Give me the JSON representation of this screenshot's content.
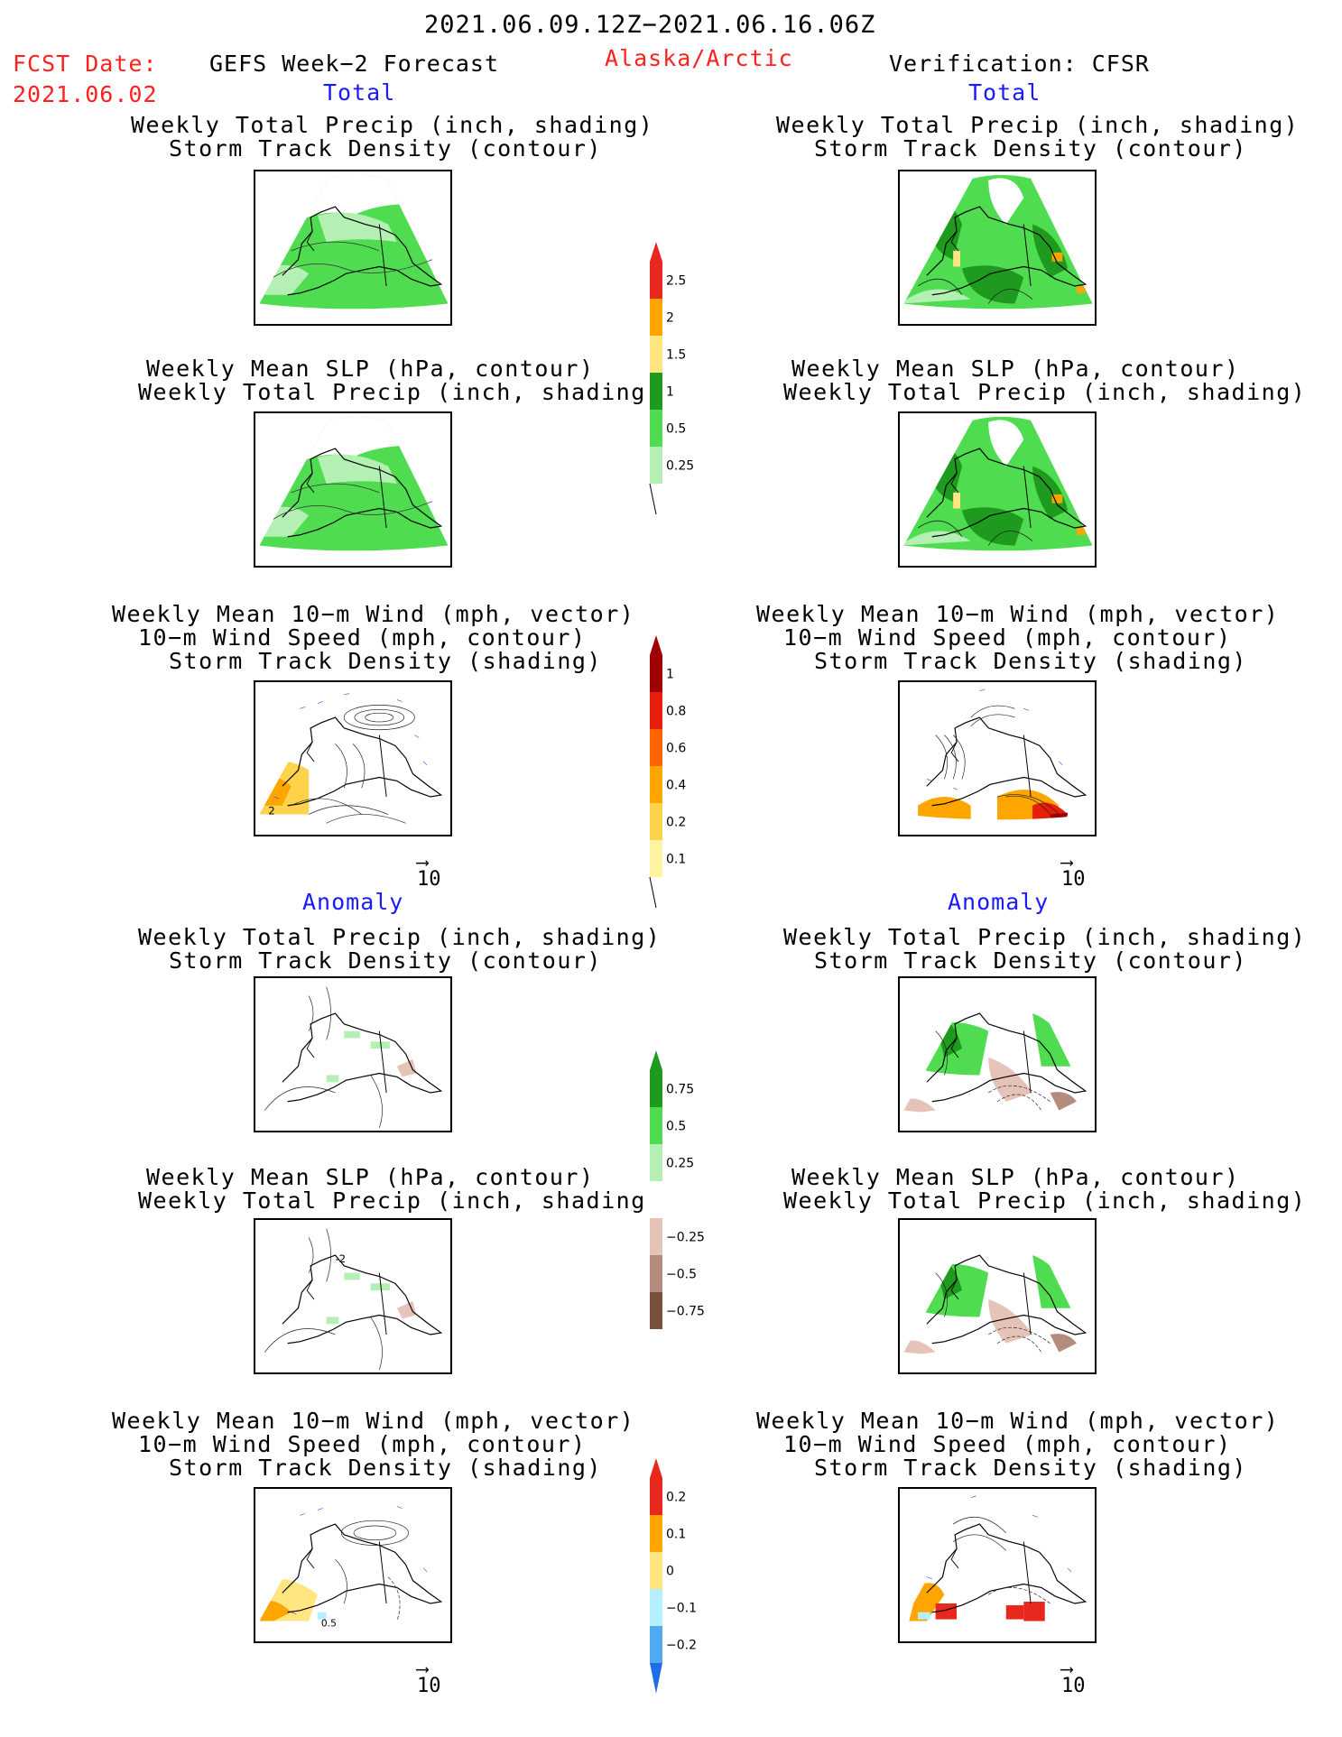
{
  "header": {
    "period": "2021.06.09.12Z−2021.06.16.06Z",
    "fcst_label": "FCST Date:",
    "fcst_date": "2021.06.02",
    "model": "GEFS Week−2 Forecast",
    "region": "Alaska/Arctic",
    "verification": "Verification: CFSR"
  },
  "sections": {
    "total": "Total",
    "anomaly": "Anomaly"
  },
  "panel_titles": {
    "precip_track": [
      "Weekly Total Precip (inch, shading)",
      "Storm Track Density (contour)"
    ],
    "slp_precip": [
      "Weekly Mean SLP (hPa, contour)",
      "Weekly Total Precip (inch, shading)"
    ],
    "wind_track": [
      "Weekly Mean 10−m Wind (mph, vector)",
      "10−m Wind Speed (mph, contour)",
      "Storm Track Density (shading)"
    ]
  },
  "vector_scale": "10",
  "panel_annotations": {
    "total_wind_left": "2",
    "anom_slp_left": "-2",
    "anom_wind_left": "0.5"
  },
  "colorbars": {
    "precip_total": {
      "labels": [
        "2.5",
        "2",
        "1.5",
        "1",
        "0.5",
        "0.25"
      ],
      "colors": [
        "#e8281e",
        "#ffa500",
        "#ffe680",
        "#1e9b1e",
        "#50dc50",
        "#b4f0b4"
      ]
    },
    "track_total": {
      "labels": [
        "1",
        "0.8",
        "0.6",
        "0.4",
        "0.2",
        "0.1"
      ],
      "colors": [
        "#a00000",
        "#e61e0a",
        "#ff6400",
        "#ffa500",
        "#ffd24b",
        "#fff5a0"
      ]
    },
    "precip_anom": {
      "labels": [
        "0.75",
        "0.5",
        "0.25",
        "−0.25",
        "−0.5",
        "−0.75"
      ],
      "colors": [
        "#1e9b1e",
        "#50dc50",
        "#b4f0b4",
        "#ffffff",
        "#e6c3b9",
        "#b48c7d",
        "#78503c"
      ]
    },
    "track_anom": {
      "labels": [
        "0.2",
        "0.1",
        "0",
        "−0.1",
        "−0.2"
      ],
      "colors": [
        "#e8281e",
        "#ffa500",
        "#ffe680",
        "#b4f0ff",
        "#50aaf0",
        "#1e6ee6"
      ]
    }
  }
}
